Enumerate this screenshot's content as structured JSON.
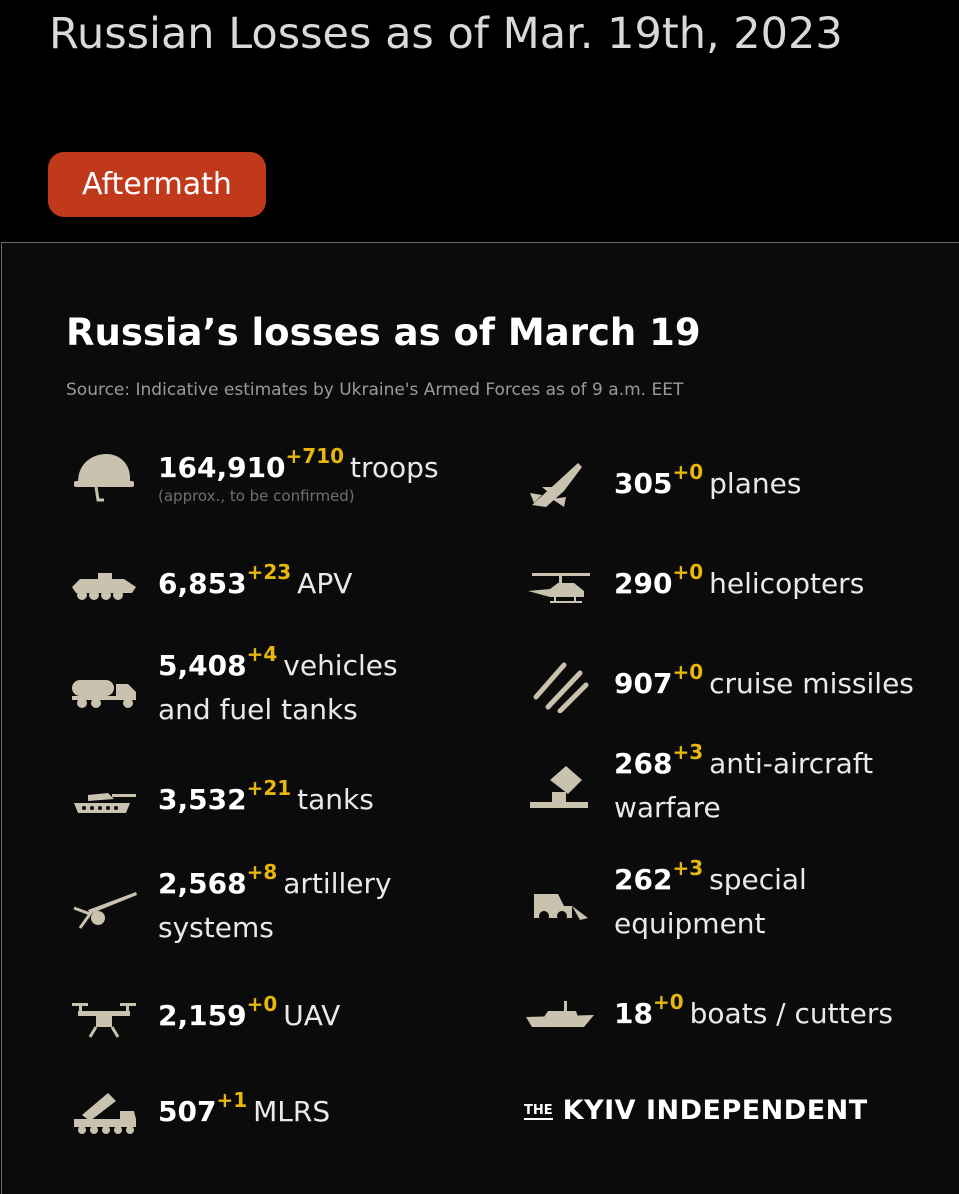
{
  "post": {
    "title": "Russian Losses as of Mar. 19th, 2023",
    "tag": "Aftermath"
  },
  "infographic": {
    "title_prefix": "Russia’s losses as of ",
    "title_date": "March 19",
    "source": "Source: Indicative estimates by Ukraine's Armed Forces as of 9 a.m. EET",
    "accent_color": "#e7b70c",
    "left": [
      {
        "icon": "helmet-icon",
        "value": "164,910",
        "delta": "+710",
        "unit": "troops",
        "note": "(approx., to be confirmed)"
      },
      {
        "icon": "apv-icon",
        "value": "6,853",
        "delta": "+23",
        "unit": "APV"
      },
      {
        "icon": "fuel-truck-icon",
        "value": "5,408",
        "delta": "+4",
        "unit": "vehicles",
        "unit2": "and fuel tanks"
      },
      {
        "icon": "tank-icon",
        "value": "3,532",
        "delta": "+21",
        "unit": "tanks"
      },
      {
        "icon": "artillery-icon",
        "value": "2,568",
        "delta": "+8",
        "unit": "artillery",
        "unit2": "systems"
      },
      {
        "icon": "drone-icon",
        "value": "2,159",
        "delta": "+0",
        "unit": "UAV"
      },
      {
        "icon": "mlrs-icon",
        "value": "507",
        "delta": "+1",
        "unit": "MLRS"
      }
    ],
    "right": [
      {
        "icon": "plane-icon",
        "value": "305",
        "delta": "+0",
        "unit": "planes"
      },
      {
        "icon": "helicopter-icon",
        "value": "290",
        "delta": "+0",
        "unit": "helicopters"
      },
      {
        "icon": "missiles-icon",
        "value": "907",
        "delta": "+0",
        "unit": "cruise missiles"
      },
      {
        "icon": "anti-aircraft-icon",
        "value": "268",
        "delta": "+3",
        "unit": "anti-aircraft",
        "unit2": "warfare"
      },
      {
        "icon": "bulldozer-icon",
        "value": "262",
        "delta": "+3",
        "unit": "special",
        "unit2": "equipment"
      },
      {
        "icon": "boat-icon",
        "value": "18",
        "delta": "+0",
        "unit": "boats / cutters"
      }
    ],
    "logo": {
      "the": "THE",
      "brand": "KYIV INDEPENDENT"
    }
  }
}
